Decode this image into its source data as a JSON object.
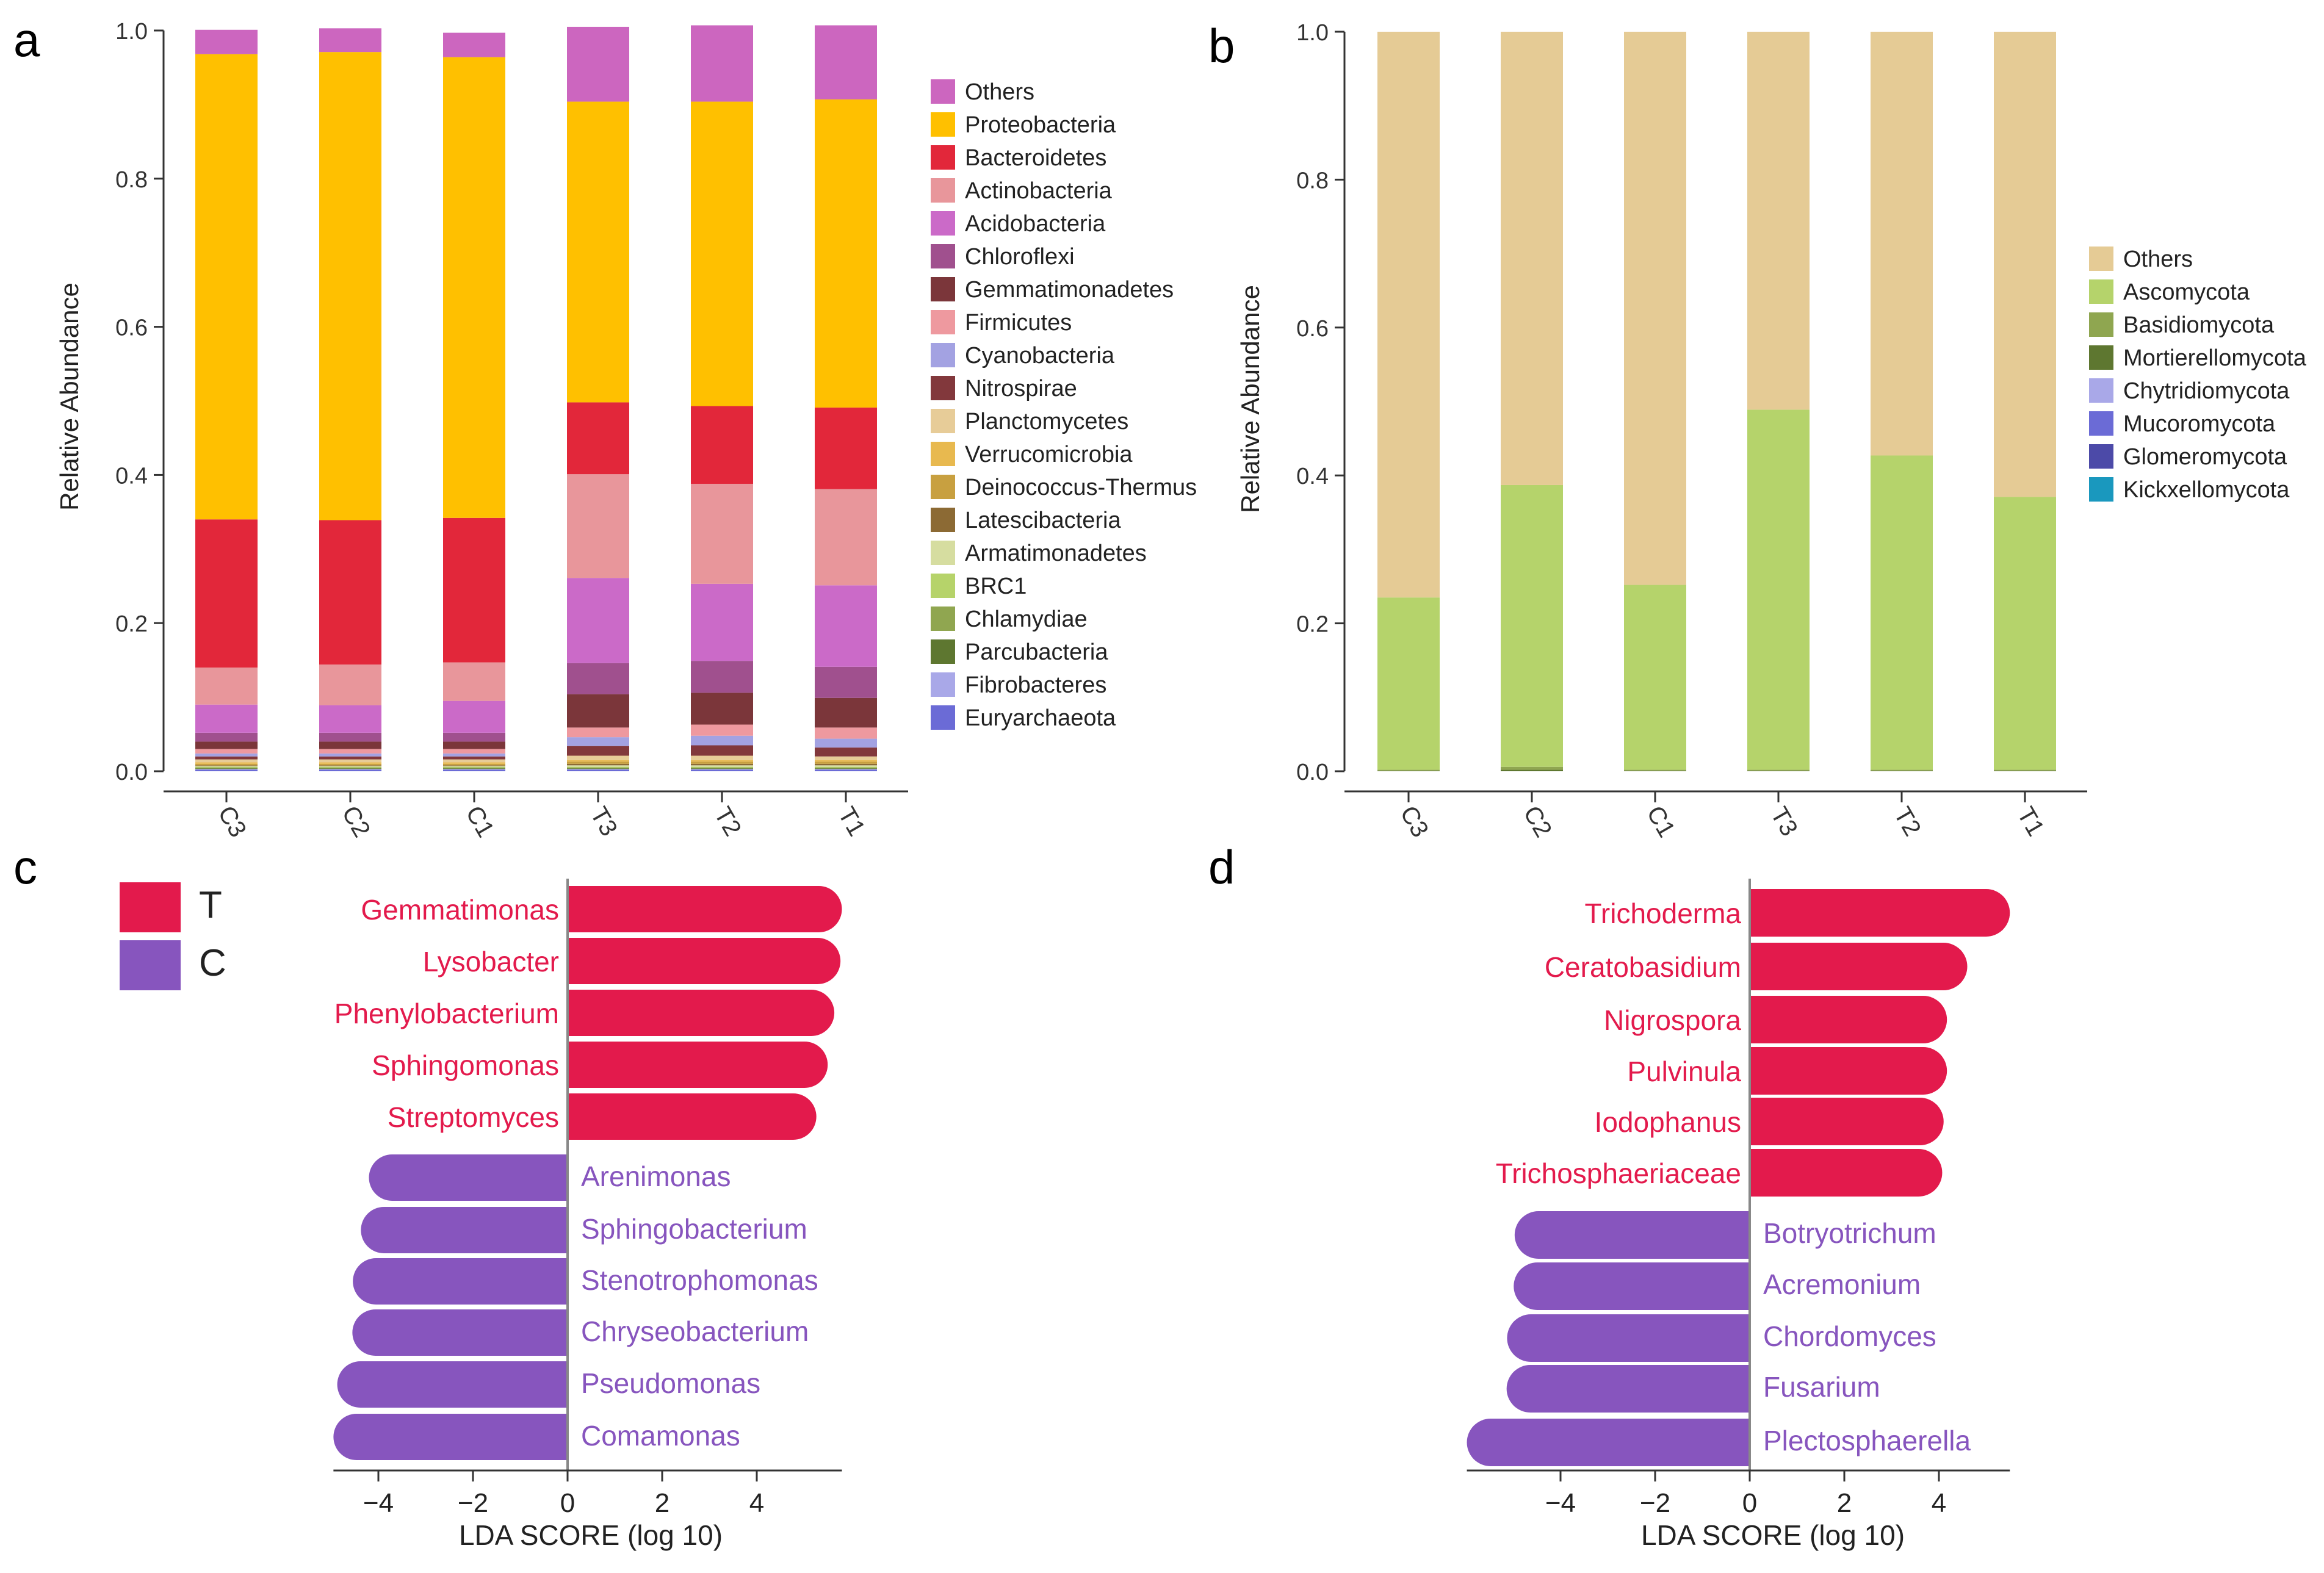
{
  "chart_data": [
    {
      "panel": "a",
      "type": "stacked-bar",
      "ylabel": "Relative Abundance",
      "ylim": [
        0,
        1
      ],
      "yticks": [
        "0.0",
        "0.2",
        "0.4",
        "0.6",
        "0.8",
        "1.0"
      ],
      "categories": [
        "C3",
        "C2",
        "C1",
        "T3",
        "T2",
        "T1"
      ],
      "legend": [
        {
          "name": "Others",
          "color": "#CC66BF"
        },
        {
          "name": "Proteobacteria",
          "color": "#FFC000"
        },
        {
          "name": "Bacteroidetes",
          "color": "#E2273A"
        },
        {
          "name": "Actinobacteria",
          "color": "#E8969B"
        },
        {
          "name": "Acidobacteria",
          "color": "#CB6AC8"
        },
        {
          "name": "Chloroflexi",
          "color": "#A0508E"
        },
        {
          "name": "Gemmatimonadetes",
          "color": "#7B363A"
        },
        {
          "name": "Firmicutes",
          "color": "#EE999F"
        },
        {
          "name": "Cyanobacteria",
          "color": "#A3A2E2"
        },
        {
          "name": "Nitrospirae",
          "color": "#82383C"
        },
        {
          "name": "Planctomycetes",
          "color": "#E7CC98"
        },
        {
          "name": "Verrucomicrobia",
          "color": "#E8B94F"
        },
        {
          "name": "Deinococcus-Thermus",
          "color": "#C8A040"
        },
        {
          "name": "Latescibacteria",
          "color": "#8C6A34"
        },
        {
          "name": "Armatimonadetes",
          "color": "#D6DDA0"
        },
        {
          "name": "BRC1",
          "color": "#B6D36A"
        },
        {
          "name": "Chlamydiae",
          "color": "#90A650"
        },
        {
          "name": "Parcubacteria",
          "color": "#5E7730"
        },
        {
          "name": "Fibrobacteres",
          "color": "#A9A8E8"
        },
        {
          "name": "Euryarchaeota",
          "color": "#6B6BD6"
        }
      ],
      "series": [
        {
          "name": "Euryarchaeota",
          "values": [
            0.002,
            0.002,
            0.002,
            0.002,
            0.002,
            0.002
          ]
        },
        {
          "name": "Fibrobacteres",
          "values": [
            0.001,
            0.001,
            0.001,
            0.001,
            0.001,
            0.001
          ]
        },
        {
          "name": "Parcubacteria",
          "values": [
            0.001,
            0.001,
            0.001,
            0.001,
            0.001,
            0.001
          ]
        },
        {
          "name": "Chlamydiae",
          "values": [
            0.001,
            0.001,
            0.001,
            0.001,
            0.001,
            0.001
          ]
        },
        {
          "name": "BRC1",
          "values": [
            0.001,
            0.001,
            0.001,
            0.001,
            0.001,
            0.001
          ]
        },
        {
          "name": "Armatimonadetes",
          "values": [
            0.001,
            0.001,
            0.001,
            0.002,
            0.002,
            0.002
          ]
        },
        {
          "name": "Latescibacteria",
          "values": [
            0.001,
            0.001,
            0.001,
            0.002,
            0.002,
            0.002
          ]
        },
        {
          "name": "Deinococcus-Thermus",
          "values": [
            0.002,
            0.002,
            0.002,
            0.003,
            0.003,
            0.003
          ]
        },
        {
          "name": "Verrucomicrobia",
          "values": [
            0.002,
            0.002,
            0.002,
            0.002,
            0.002,
            0.002
          ]
        },
        {
          "name": "Planctomycetes",
          "values": [
            0.004,
            0.004,
            0.004,
            0.006,
            0.006,
            0.005
          ]
        },
        {
          "name": "Nitrospirae",
          "values": [
            0.004,
            0.004,
            0.004,
            0.013,
            0.014,
            0.012
          ]
        },
        {
          "name": "Cyanobacteria",
          "values": [
            0.004,
            0.004,
            0.004,
            0.012,
            0.013,
            0.012
          ]
        },
        {
          "name": "Firmicutes",
          "values": [
            0.006,
            0.006,
            0.006,
            0.013,
            0.015,
            0.015
          ]
        },
        {
          "name": "Gemmatimonadetes",
          "values": [
            0.01,
            0.01,
            0.01,
            0.045,
            0.043,
            0.04
          ]
        },
        {
          "name": "Chloroflexi",
          "values": [
            0.012,
            0.012,
            0.012,
            0.042,
            0.043,
            0.042
          ]
        },
        {
          "name": "Acidobacteria",
          "values": [
            0.038,
            0.037,
            0.043,
            0.115,
            0.104,
            0.11
          ]
        },
        {
          "name": "Actinobacteria",
          "values": [
            0.05,
            0.055,
            0.052,
            0.14,
            0.135,
            0.13
          ]
        },
        {
          "name": "Bacteroidetes",
          "values": [
            0.2,
            0.195,
            0.195,
            0.097,
            0.105,
            0.11
          ]
        },
        {
          "name": "Proteobacteria",
          "values": [
            0.628,
            0.632,
            0.622,
            0.406,
            0.411,
            0.416
          ]
        },
        {
          "name": "Others",
          "values": [
            0.033,
            0.032,
            0.033,
            0.101,
            0.103,
            0.1
          ]
        }
      ]
    },
    {
      "panel": "b",
      "type": "stacked-bar",
      "ylabel": "Relative Abundance",
      "ylim": [
        0,
        1
      ],
      "yticks": [
        "0.0",
        "0.2",
        "0.4",
        "0.6",
        "0.8",
        "1.0"
      ],
      "categories": [
        "C3",
        "C2",
        "C1",
        "T3",
        "T2",
        "T1"
      ],
      "legend": [
        {
          "name": "Others",
          "color": "#E5CB95"
        },
        {
          "name": "Ascomycota",
          "color": "#B5D36B"
        },
        {
          "name": "Basidiomycota",
          "color": "#8FA650"
        },
        {
          "name": "Mortierellomycota",
          "color": "#5E7730"
        },
        {
          "name": "Chytridiomycota",
          "color": "#A9A8E8"
        },
        {
          "name": "Mucoromycota",
          "color": "#6B6BD6"
        },
        {
          "name": "Glomeromycota",
          "color": "#4C4AA8"
        },
        {
          "name": "Kickxellomycota",
          "color": "#1A98BE"
        }
      ],
      "series": [
        {
          "name": "Mortierellomycota",
          "values": [
            0.001,
            0.002,
            0.001,
            0.001,
            0.001,
            0.001
          ]
        },
        {
          "name": "Basidiomycota",
          "values": [
            0.001,
            0.004,
            0.001,
            0.001,
            0.001,
            0.001
          ]
        },
        {
          "name": "Ascomycota",
          "values": [
            0.233,
            0.381,
            0.25,
            0.487,
            0.425,
            0.369
          ]
        },
        {
          "name": "Others",
          "values": [
            0.765,
            0.613,
            0.748,
            0.511,
            0.573,
            0.629
          ]
        }
      ]
    },
    {
      "panel": "c",
      "type": "bar",
      "orientation": "horizontal",
      "xlabel": "LDA SCORE (log 10)",
      "xticks": [
        -4,
        -2,
        0,
        2,
        4
      ],
      "xlim": [
        -4.95,
        5.8
      ],
      "legend": [
        {
          "name": "T",
          "color": "#E31A4C"
        },
        {
          "name": "C",
          "color": "#8755BE"
        }
      ],
      "bars": [
        {
          "label": "Gemmatimonas",
          "group": "T",
          "value": 5.8
        },
        {
          "label": "Lysobacter",
          "group": "T",
          "value": 5.77
        },
        {
          "label": "Phenylobacterium",
          "group": "T",
          "value": 5.64
        },
        {
          "label": "Sphingomonas",
          "group": "T",
          "value": 5.5
        },
        {
          "label": "Streptomyces",
          "group": "T",
          "value": 5.26
        },
        {
          "label": "Arenimonas",
          "group": "C",
          "value": -4.2
        },
        {
          "label": "Sphingobacterium",
          "group": "C",
          "value": -4.37
        },
        {
          "label": "Stenotrophomonas",
          "group": "C",
          "value": -4.54
        },
        {
          "label": "Chryseobacterium",
          "group": "C",
          "value": -4.55
        },
        {
          "label": "Pseudomonas",
          "group": "C",
          "value": -4.87
        },
        {
          "label": "Comamonas",
          "group": "C",
          "value": -4.95
        }
      ]
    },
    {
      "panel": "d",
      "type": "bar",
      "orientation": "horizontal",
      "xlabel": "LDA SCORE (log 10)",
      "xticks": [
        -4,
        -2,
        0,
        2,
        4
      ],
      "xlim": [
        -5.98,
        5.5
      ],
      "legend": [
        {
          "name": "T",
          "color": "#E31A4C"
        },
        {
          "name": "C",
          "color": "#8755BE"
        }
      ],
      "bars": [
        {
          "label": "Trichoderma",
          "group": "T",
          "value": 5.5
        },
        {
          "label": "Ceratobasidium",
          "group": "T",
          "value": 4.6
        },
        {
          "label": "Nigrospora",
          "group": "T",
          "value": 4.17
        },
        {
          "label": "Pulvinula",
          "group": "T",
          "value": 4.17
        },
        {
          "label": "Iodophanus",
          "group": "T",
          "value": 4.1
        },
        {
          "label": "Trichosphaeriaceae",
          "group": "T",
          "value": 4.07
        },
        {
          "label": "Botryotrichum",
          "group": "C",
          "value": -4.97
        },
        {
          "label": "Acremonium",
          "group": "C",
          "value": -4.99
        },
        {
          "label": "Chordomyces",
          "group": "C",
          "value": -5.13
        },
        {
          "label": "Fusarium",
          "group": "C",
          "value": -5.14
        },
        {
          "label": "Plectosphaerella",
          "group": "C",
          "value": -5.98
        }
      ]
    }
  ]
}
